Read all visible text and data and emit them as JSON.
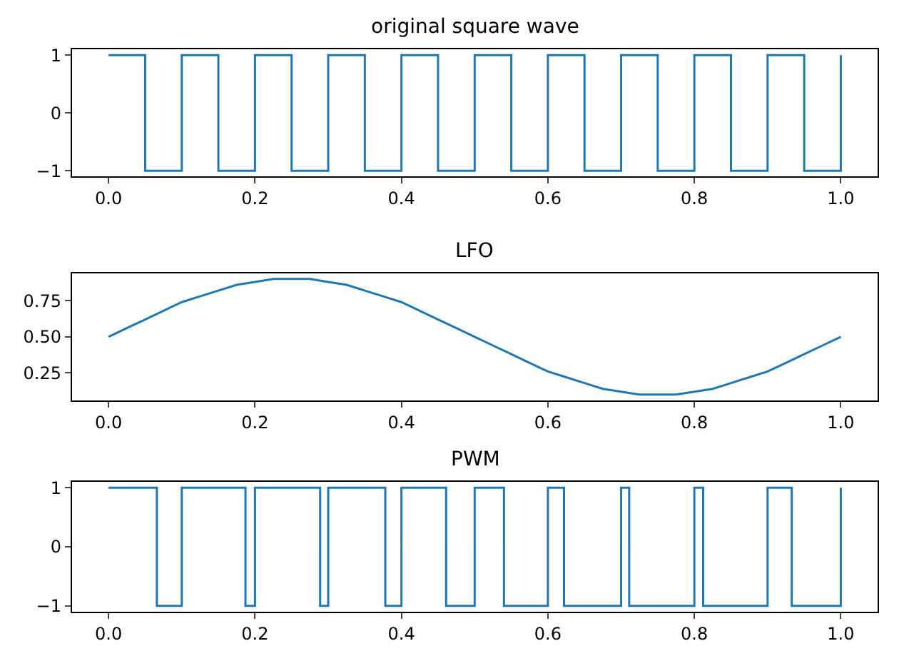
{
  "chart_data": [
    {
      "type": "step",
      "title": "original square wave",
      "line_style": "solid",
      "x": [
        0,
        0.05,
        0.1,
        0.15,
        0.2,
        0.25,
        0.3,
        0.35,
        0.4,
        0.45,
        0.5,
        0.55,
        0.6,
        0.65,
        0.7,
        0.75,
        0.8,
        0.85,
        0.9,
        0.95,
        1.0
      ],
      "series": [
        {
          "color": "#1f77b4",
          "values": [
            1,
            -1,
            1,
            -1,
            1,
            -1,
            1,
            -1,
            1,
            -1,
            1,
            -1,
            1,
            -1,
            1,
            -1,
            1,
            -1,
            1,
            -1,
            1
          ]
        }
      ],
      "xlim": [
        -0.05,
        1.05
      ],
      "xticks": [
        {
          "value": 0,
          "label": "0.0"
        },
        {
          "value": 0.2,
          "label": "0.2"
        },
        {
          "value": 0.4,
          "label": "0.4"
        },
        {
          "value": 0.6,
          "label": "0.6"
        },
        {
          "value": 0.8,
          "label": "0.8"
        },
        {
          "value": 1,
          "label": "1.0"
        }
      ],
      "ylim": [
        -1.1,
        1.1
      ],
      "yticks": [
        -1,
        0,
        1
      ]
    },
    {
      "type": "line",
      "title": "LFO",
      "line_style": "solid",
      "x": [
        0,
        0.025,
        0.05,
        0.075,
        0.1,
        0.125,
        0.15,
        0.175,
        0.2,
        0.225,
        0.25,
        0.275,
        0.3,
        0.325,
        0.35,
        0.375,
        0.4,
        0.425,
        0.45,
        0.475,
        0.5,
        0.525,
        0.55,
        0.575,
        0.6,
        0.625,
        0.65,
        0.675,
        0.7,
        0.725,
        0.75,
        0.775,
        0.8,
        0.825,
        0.85,
        0.875,
        0.9,
        0.925,
        0.95,
        0.975,
        1.0
      ],
      "series": [
        {
          "color": "#1f77b4",
          "values": [
            0.5,
            0.56,
            0.62,
            0.68,
            0.74,
            0.78,
            0.82,
            0.86,
            0.88,
            0.9,
            0.9,
            0.9,
            0.88,
            0.86,
            0.82,
            0.78,
            0.74,
            0.68,
            0.62,
            0.56,
            0.5,
            0.44,
            0.38,
            0.32,
            0.26,
            0.22,
            0.18,
            0.14,
            0.12,
            0.1,
            0.1,
            0.1,
            0.12,
            0.14,
            0.18,
            0.22,
            0.26,
            0.32,
            0.38,
            0.44,
            0.5
          ]
        }
      ],
      "xlim": [
        -0.05,
        1.05
      ],
      "xticks": [
        {
          "value": 0,
          "label": "0.0"
        },
        {
          "value": 0.2,
          "label": "0.2"
        },
        {
          "value": 0.4,
          "label": "0.4"
        },
        {
          "value": 0.6,
          "label": "0.6"
        },
        {
          "value": 0.8,
          "label": "0.8"
        },
        {
          "value": 1,
          "label": "1.0"
        }
      ],
      "ylim": [
        0.06,
        0.94
      ],
      "yticks": [
        0.25,
        {
          "value": 0.5,
          "label": "0.50"
        },
        0.75
      ]
    },
    {
      "type": "step",
      "title": "PWM",
      "line_style": "solid",
      "x": [
        0,
        0.066,
        0.1,
        0.187,
        0.2,
        0.289,
        0.3,
        0.378,
        0.4,
        0.461,
        0.5,
        0.54,
        0.6,
        0.622,
        0.7,
        0.711,
        0.8,
        0.812,
        0.9,
        0.933,
        1.0
      ],
      "series": [
        {
          "color": "#1f77b4",
          "values": [
            1,
            -1,
            1,
            -1,
            1,
            -1,
            1,
            -1,
            1,
            -1,
            1,
            -1,
            1,
            -1,
            1,
            -1,
            1,
            -1,
            1,
            -1,
            1
          ]
        }
      ],
      "xlim": [
        -0.05,
        1.05
      ],
      "xticks": [
        {
          "value": 0,
          "label": "0.0"
        },
        {
          "value": 0.2,
          "label": "0.2"
        },
        {
          "value": 0.4,
          "label": "0.4"
        },
        {
          "value": 0.6,
          "label": "0.6"
        },
        {
          "value": 0.8,
          "label": "0.8"
        },
        {
          "value": 1,
          "label": "1.0"
        }
      ],
      "ylim": [
        -1.1,
        1.1
      ],
      "yticks": [
        -1,
        0,
        1
      ]
    }
  ]
}
